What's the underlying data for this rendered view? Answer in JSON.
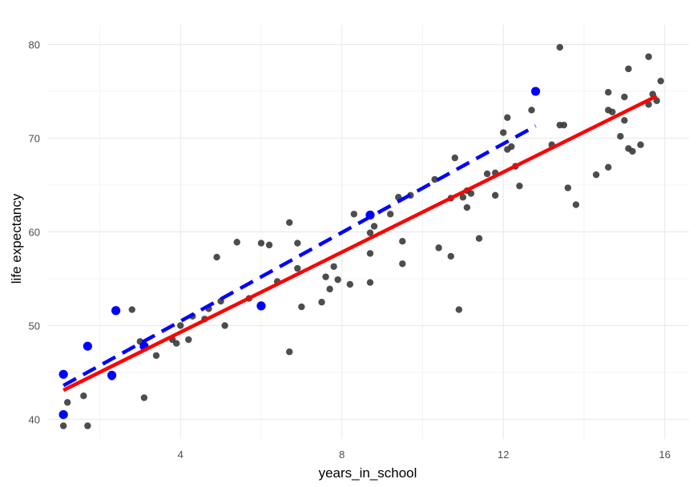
{
  "chart_data": {
    "type": "scatter",
    "xlabel": "years_in_school",
    "ylabel": "life expectancy",
    "xlim": [
      0.7,
      16.6
    ],
    "ylim": [
      37.9,
      82.1
    ],
    "x_ticks": [
      4,
      8,
      12,
      16
    ],
    "y_ticks": [
      40,
      50,
      60,
      70,
      80
    ],
    "grid": true,
    "series": [
      {
        "color": "#3a3a3a",
        "points": [
          [
            1.1,
            39.3
          ],
          [
            1.2,
            41.8
          ],
          [
            1.6,
            42.5
          ],
          [
            1.7,
            39.3
          ],
          [
            2.3,
            44.5
          ],
          [
            2.8,
            51.7
          ],
          [
            3.0,
            48.3
          ],
          [
            3.1,
            42.3
          ],
          [
            3.4,
            46.8
          ],
          [
            3.8,
            48.5
          ],
          [
            3.9,
            48.1
          ],
          [
            4.0,
            50.0
          ],
          [
            4.2,
            48.5
          ],
          [
            4.3,
            51.0
          ],
          [
            4.6,
            50.7
          ],
          [
            4.7,
            51.8
          ],
          [
            5.0,
            52.6
          ],
          [
            4.9,
            57.3
          ],
          [
            5.1,
            50.0
          ],
          [
            5.4,
            58.9
          ],
          [
            5.7,
            52.9
          ],
          [
            6.0,
            58.8
          ],
          [
            6.2,
            58.6
          ],
          [
            6.4,
            54.7
          ],
          [
            6.7,
            61.0
          ],
          [
            6.7,
            47.2
          ],
          [
            6.9,
            58.8
          ],
          [
            6.9,
            56.1
          ],
          [
            7.0,
            52.0
          ],
          [
            7.5,
            52.5
          ],
          [
            7.6,
            55.2
          ],
          [
            7.7,
            53.9
          ],
          [
            7.8,
            56.3
          ],
          [
            7.9,
            54.9
          ],
          [
            8.2,
            54.4
          ],
          [
            8.3,
            61.9
          ],
          [
            8.7,
            54.6
          ],
          [
            8.7,
            57.7
          ],
          [
            8.8,
            60.6
          ],
          [
            8.7,
            59.9
          ],
          [
            9.2,
            61.9
          ],
          [
            9.4,
            63.7
          ],
          [
            9.5,
            59.0
          ],
          [
            9.5,
            56.6
          ],
          [
            9.7,
            63.9
          ],
          [
            10.3,
            65.6
          ],
          [
            10.4,
            58.3
          ],
          [
            10.7,
            57.4
          ],
          [
            10.7,
            63.6
          ],
          [
            10.8,
            67.9
          ],
          [
            10.9,
            51.7
          ],
          [
            11.0,
            63.7
          ],
          [
            11.1,
            64.4
          ],
          [
            11.1,
            62.6
          ],
          [
            11.2,
            64.1
          ],
          [
            11.4,
            59.3
          ],
          [
            11.6,
            66.2
          ],
          [
            11.8,
            63.9
          ],
          [
            11.8,
            66.3
          ],
          [
            12.0,
            70.6
          ],
          [
            12.1,
            72.2
          ],
          [
            12.2,
            69.1
          ],
          [
            12.1,
            68.8
          ],
          [
            12.3,
            67.0
          ],
          [
            12.4,
            64.9
          ],
          [
            12.7,
            73.0
          ],
          [
            13.2,
            69.3
          ],
          [
            13.4,
            71.4
          ],
          [
            13.5,
            71.4
          ],
          [
            13.4,
            79.7
          ],
          [
            13.6,
            64.7
          ],
          [
            13.8,
            62.9
          ],
          [
            14.3,
            66.1
          ],
          [
            14.6,
            66.9
          ],
          [
            14.6,
            73.0
          ],
          [
            14.6,
            74.9
          ],
          [
            14.7,
            72.8
          ],
          [
            14.9,
            70.2
          ],
          [
            15.0,
            71.9
          ],
          [
            15.0,
            74.4
          ],
          [
            15.1,
            68.9
          ],
          [
            15.1,
            77.4
          ],
          [
            15.2,
            68.6
          ],
          [
            15.4,
            69.3
          ],
          [
            15.6,
            73.6
          ],
          [
            15.6,
            78.7
          ],
          [
            15.7,
            74.7
          ],
          [
            15.8,
            74.0
          ],
          [
            15.9,
            76.1
          ]
        ]
      },
      {
        "color": "#0000ff",
        "points": [
          [
            1.1,
            44.8
          ],
          [
            1.1,
            40.5
          ],
          [
            1.7,
            47.8
          ],
          [
            2.3,
            44.7
          ],
          [
            2.4,
            51.6
          ],
          [
            3.1,
            47.8
          ],
          [
            6.0,
            52.1
          ],
          [
            8.7,
            61.8
          ],
          [
            12.8,
            75.0
          ]
        ]
      }
    ],
    "lines": [
      {
        "color": "#ff0000",
        "style": "solid",
        "points": [
          [
            1.1,
            43.1
          ],
          [
            15.8,
            74.5
          ]
        ]
      },
      {
        "color": "#0000ff",
        "style": "dashed",
        "points": [
          [
            1.1,
            43.6
          ],
          [
            12.8,
            71.3
          ]
        ]
      }
    ]
  }
}
